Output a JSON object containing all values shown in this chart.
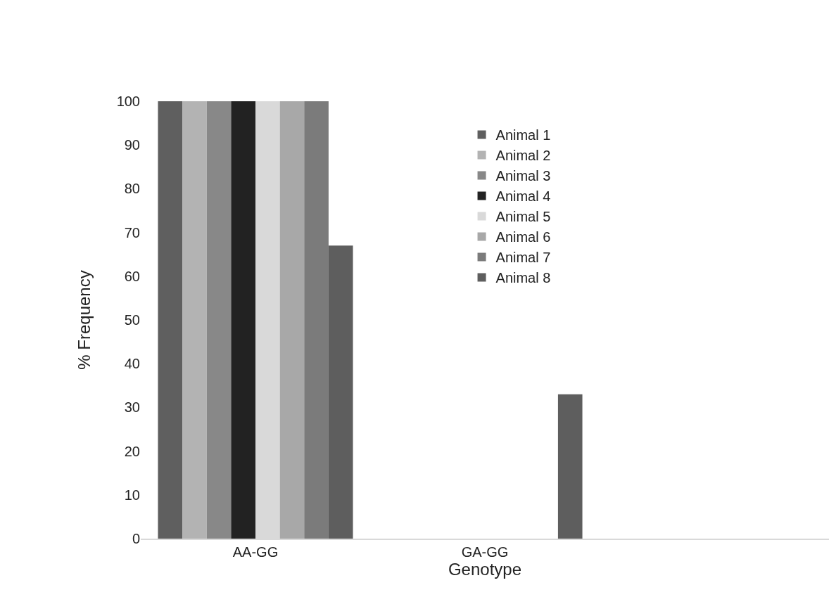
{
  "chart_data": {
    "type": "bar",
    "xlabel": "Genotype",
    "ylabel": "% Frequency",
    "categories": [
      "AA-GG",
      "GA-GG",
      null
    ],
    "series": [
      {
        "name": "Animal 1",
        "color": "#5f5f5f",
        "values": [
          100,
          0,
          0
        ]
      },
      {
        "name": "Animal 2",
        "color": "#b3b3b3",
        "values": [
          100,
          0,
          0
        ]
      },
      {
        "name": "Animal 3",
        "color": "#888888",
        "values": [
          100,
          0,
          0
        ]
      },
      {
        "name": "Animal 4",
        "color": "#222222",
        "values": [
          100,
          0,
          0
        ]
      },
      {
        "name": "Animal 5",
        "color": "#d9d9d9",
        "values": [
          100,
          0,
          0
        ]
      },
      {
        "name": "Animal 6",
        "color": "#a8a8a8",
        "values": [
          100,
          0,
          0
        ]
      },
      {
        "name": "Animal 7",
        "color": "#7b7b7b",
        "values": [
          100,
          0,
          0
        ]
      },
      {
        "name": "Animal 8",
        "color": "#5e5e5e",
        "values": [
          67,
          33,
          0
        ]
      }
    ],
    "ylim": [
      0,
      100
    ],
    "yticks": [
      0,
      10,
      20,
      30,
      40,
      50,
      60,
      70,
      80,
      90,
      100
    ],
    "grid": false,
    "legend": "top"
  }
}
